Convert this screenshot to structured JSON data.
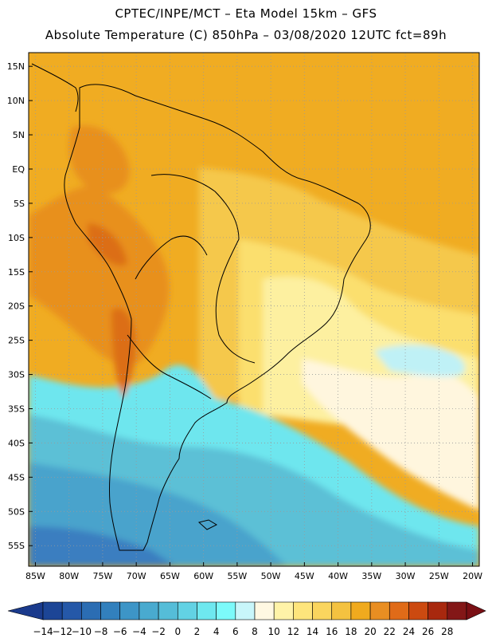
{
  "header": {
    "line1": "CPTEC/INPE/MCT –  Eta Model 15km – GFS",
    "line2": "Absolute Temperature (C) 850hPa – 03/08/2020 12UTC fct=89h"
  },
  "map": {
    "lon_min": -86,
    "lon_max": -19,
    "lat_min": -58,
    "lat_max": 17,
    "lat_ticks": [
      {
        "label": "15N",
        "lat": 15
      },
      {
        "label": "10N",
        "lat": 10
      },
      {
        "label": "5N",
        "lat": 5
      },
      {
        "label": "EQ",
        "lat": 0
      },
      {
        "label": "5S",
        "lat": -5
      },
      {
        "label": "10S",
        "lat": -10
      },
      {
        "label": "15S",
        "lat": -15
      },
      {
        "label": "20S",
        "lat": -20
      },
      {
        "label": "25S",
        "lat": -25
      },
      {
        "label": "30S",
        "lat": -30
      },
      {
        "label": "35S",
        "lat": -35
      },
      {
        "label": "40S",
        "lat": -40
      },
      {
        "label": "45S",
        "lat": -45
      },
      {
        "label": "50S",
        "lat": -50
      },
      {
        "label": "55S",
        "lat": -55
      }
    ],
    "lon_ticks": [
      {
        "label": "85W",
        "lon": -85
      },
      {
        "label": "80W",
        "lon": -80
      },
      {
        "label": "75W",
        "lon": -75
      },
      {
        "label": "70W",
        "lon": -70
      },
      {
        "label": "65W",
        "lon": -65
      },
      {
        "label": "60W",
        "lon": -60
      },
      {
        "label": "55W",
        "lon": -55
      },
      {
        "label": "50W",
        "lon": -50
      },
      {
        "label": "45W",
        "lon": -45
      },
      {
        "label": "40W",
        "lon": -40
      },
      {
        "label": "35W",
        "lon": -35
      },
      {
        "label": "30W",
        "lon": -30
      },
      {
        "label": "25W",
        "lon": -25
      },
      {
        "label": "20W",
        "lon": -20
      }
    ],
    "gridlines": "dotted"
  },
  "colorbar": {
    "labels": [
      "-14",
      "-12",
      "-10",
      "-8",
      "-6",
      "-4",
      "-2",
      "0",
      "2",
      "4",
      "6",
      "8",
      "10",
      "12",
      "14",
      "16",
      "18",
      "20",
      "22",
      "24",
      "26",
      "28"
    ],
    "low_color": "#1a3a8c",
    "high_color": "#7a0f14",
    "colors": [
      "#1c4596",
      "#2558a8",
      "#2b6db3",
      "#3280bd",
      "#3d95c7",
      "#49aacf",
      "#55bdd8",
      "#62d2e4",
      "#6ee8ef",
      "#7cfafa",
      "#c8f6fa",
      "#fff8e2",
      "#fff3a8",
      "#fee57c",
      "#fad55e",
      "#f4c240",
      "#f0aa1e",
      "#e98e22",
      "#e06b18",
      "#cc4a10",
      "#a8280e",
      "#831717"
    ]
  },
  "field_colors": {
    "cold_deep": "#3a7ec0",
    "cold": "#4aa3cc",
    "cool": "#5bc0d6",
    "cyan": "#6ee6ee",
    "pale_cyan": "#bff1f6",
    "cream": "#fff6de",
    "light_yellow": "#fdf0a0",
    "yellow": "#fbdf6e",
    "gold": "#f5c84c",
    "orange": "#f0ac22",
    "dark_orange": "#e8901e",
    "red_orange": "#dc6e16"
  }
}
